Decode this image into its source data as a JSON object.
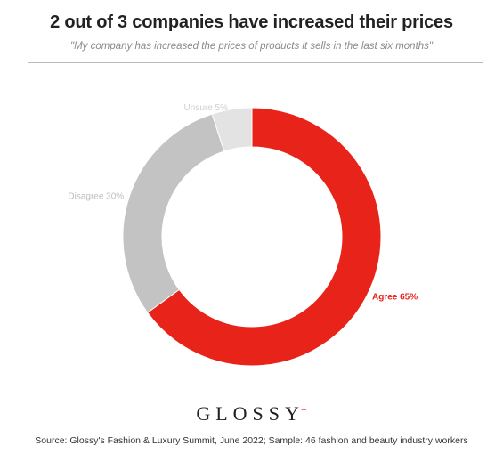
{
  "header": {
    "title": "2 out of 3 companies have increased their prices",
    "subtitle": "\"My company has increased the prices of products it sells in the last six months\""
  },
  "chart_data": {
    "type": "pie",
    "style": "donut",
    "categories": [
      "Agree",
      "Disagree",
      "Unsure"
    ],
    "values": [
      65,
      30,
      5
    ],
    "unit": "%",
    "labels": [
      "Agree 65%",
      "Disagree 30%",
      "Unsure 5%"
    ],
    "colors": [
      "#e8231a",
      "#c3c3c3",
      "#e3e3e3"
    ],
    "label_colors": [
      "#e8231a",
      "#bdbdbd",
      "#d0d0d0"
    ],
    "start": "12 o'clock, clockwise"
  },
  "footer": {
    "logo_text": "GLOSSY",
    "logo_mark": "+",
    "source": "Source: Glossy's Fashion & Luxury Summit, June 2022; Sample: 46 fashion and beauty industry workers"
  }
}
